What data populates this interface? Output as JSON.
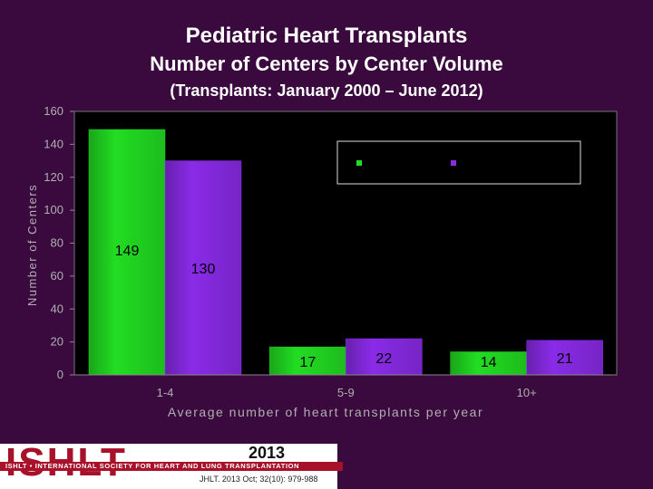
{
  "header": {
    "title_line1": "Pediatric Heart Transplants",
    "title_line2": "Number of Centers by Center Volume",
    "subtitle": "(Transplants: January  2000 – June 2012)"
  },
  "footer": {
    "logo_text": "ISHLT",
    "logo_tagline": "ISHLT • INTERNATIONAL SOCIETY FOR HEART AND LUNG TRANSPLANTATION",
    "year": "2013",
    "citation": "JHLT. 2013 Oct; 32(10): 979-988"
  },
  "colors": {
    "series_1": "#22dd22",
    "series_2": "#8a2be8",
    "plot_bg": "#000000",
    "page_bg": "#3a0a3f"
  },
  "chart_data": {
    "type": "bar",
    "title": "Pediatric Heart Transplants Number of Centers by Center Volume",
    "xlabel": "Average number of heart transplants per year",
    "ylabel": "Number of Centers",
    "categories": [
      "1-4",
      "5-9",
      "10+"
    ],
    "ylim": [
      0,
      160
    ],
    "yticks": [
      0,
      20,
      40,
      60,
      80,
      100,
      120,
      140,
      160
    ],
    "grid": false,
    "legend": "top-right",
    "series": [
      {
        "name": "",
        "values": [
          149,
          17,
          14
        ],
        "labels": [
          "149",
          "17",
          "14"
        ]
      },
      {
        "name": "",
        "values": [
          130,
          22,
          21
        ],
        "labels": [
          "130",
          "22",
          "21"
        ]
      }
    ]
  }
}
